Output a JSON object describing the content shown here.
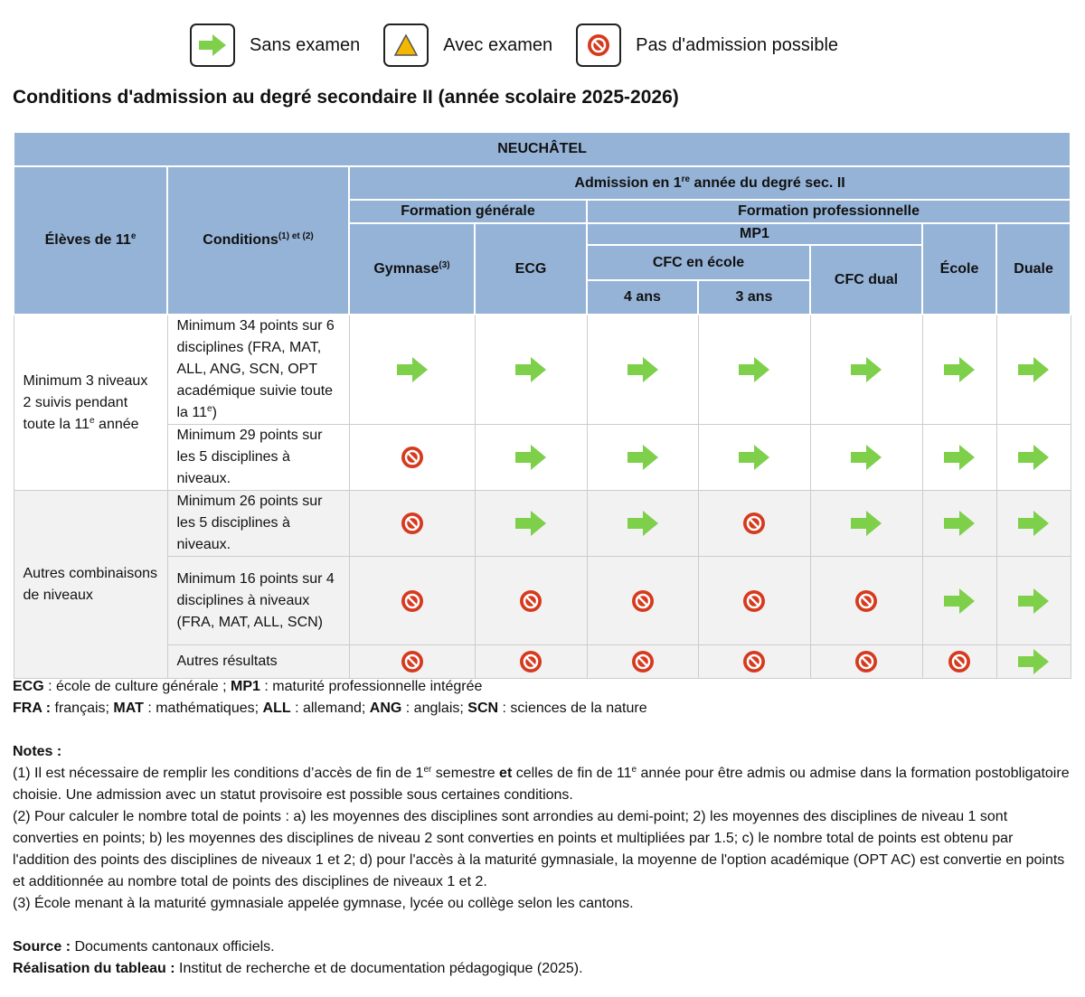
{
  "legend": [
    "Sans examen",
    "Avec examen",
    "Pas d'admission possible"
  ],
  "title": "Conditions d'admission au degré secondaire II (année scolaire 2025-2026)",
  "table": {
    "canton": "NEUCHÂTEL",
    "students": [
      "Élèves de 11",
      "e"
    ],
    "conditions": [
      "Conditions",
      "(1) et (2)"
    ],
    "admission": [
      "Admission en 1",
      "re",
      " année du degré sec. II"
    ],
    "general": "Formation générale",
    "professional": "Formation professionnelle",
    "gymnase": [
      "Gymnase",
      "(3)"
    ],
    "ecg": "ECG",
    "mp1": "MP1",
    "cfc_school": "CFC en école",
    "four_years": "4 ans",
    "three_years": "3 ans",
    "cfc_dual": "CFC dual",
    "school": "École",
    "dual": "Duale",
    "groups": [
      {
        "label": [
          "Minimum 3 niveaux 2 suivis pendant toute la 11",
          "e",
          " année"
        ],
        "rows": [
          [
            "Minimum 34 points sur 6 disciplines (FRA, MAT, ALL, ANG, SCN, OPT académique suivie toute la 11",
            "e",
            ")"
          ],
          [
            "Minimum 29 points sur les 5 disciplines à niveaux."
          ]
        ]
      },
      {
        "label": [
          "Autres combinaisons de niveaux"
        ],
        "rows": [
          [
            "Minimum 26 points sur les 5 disciplines à niveaux."
          ],
          [
            "Minimum 16 points sur 4 disciplines à niveaux (FRA, MAT, ALL, SCN)"
          ],
          [
            "Autres résultats"
          ]
        ]
      }
    ]
  },
  "abbreviations": [
    [
      "ECG",
      " : école de culture générale ; ",
      "MP1",
      " : maturité professionnelle intégrée"
    ],
    [
      "FRA :",
      " français; ",
      "MAT",
      " : mathématiques; ",
      "ALL",
      " : allemand; ",
      "ANG",
      " : anglais; ",
      "SCN",
      " : sciences de la nature"
    ]
  ],
  "notes": {
    "heading": "Notes :",
    "items": [
      [
        "(1) Il est nécessaire de remplir les conditions d’accès de fin de 1",
        "er",
        " semestre ",
        "et",
        " celles de fin de 11",
        "e",
        " année pour être admis ou admise dans la formation postobligatoire choisie. Une admission avec un statut provisoire est possible sous certaines conditions."
      ],
      [
        "(2) Pour calculer le nombre total de points : a) les moyennes des disciplines sont arrondies au demi-point; 2) les moyennes des disciplines de niveau 1 sont converties en points; b) les moyennes des disciplines de niveau 2 sont converties en points et multipliées par 1.5; c) le nombre total de points est obtenu par l'addition des points des disciplines de niveaux 1 et 2; d) pour l'accès à la maturité gymnasiale, la moyenne de l'option académique (OPT AC) est convertie en points et additionnée au nombre total de points des disciplines de niveaux 1 et 2."
      ],
      [
        "(3) École menant à la maturité gymnasiale appelée gymnase, lycée ou collège selon les cantons."
      ]
    ]
  },
  "source": [
    "Source :",
    " Documents cantonaux officiels."
  ],
  "credit": [
    "Réalisation du tableau :",
    " Institut de recherche et de documentation pédagogique (2025)."
  ]
}
